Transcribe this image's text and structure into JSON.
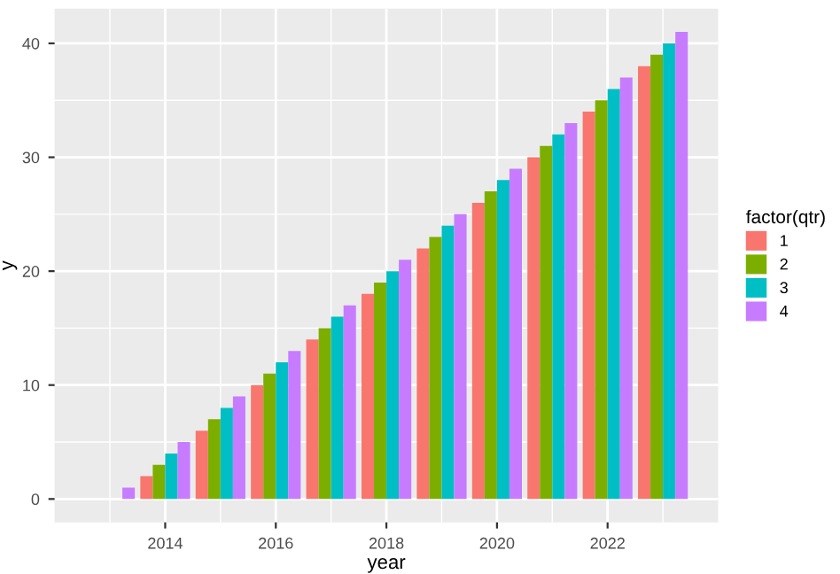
{
  "chart_data": {
    "type": "bar",
    "xlabel": "year",
    "ylabel": "y",
    "legend_title": "factor(qtr)",
    "series": [
      {
        "name": "1",
        "color": "#f8766d",
        "x": [
          2014,
          2015,
          2016,
          2017,
          2018,
          2019,
          2020,
          2021,
          2022,
          2023
        ],
        "values": [
          2,
          6,
          10,
          14,
          18,
          22,
          26,
          30,
          34,
          38
        ]
      },
      {
        "name": "2",
        "color": "#7cae00",
        "x": [
          2014,
          2015,
          2016,
          2017,
          2018,
          2019,
          2020,
          2021,
          2022,
          2023
        ],
        "values": [
          3,
          7,
          11,
          15,
          19,
          23,
          27,
          31,
          35,
          39
        ]
      },
      {
        "name": "3",
        "color": "#00bfc4",
        "x": [
          2014,
          2015,
          2016,
          2017,
          2018,
          2019,
          2020,
          2021,
          2022,
          2023
        ],
        "values": [
          4,
          8,
          12,
          16,
          20,
          24,
          28,
          32,
          36,
          40
        ]
      },
      {
        "name": "4",
        "color": "#c77cff",
        "x": [
          2013,
          2014,
          2015,
          2016,
          2017,
          2018,
          2019,
          2020,
          2021,
          2022,
          2023
        ],
        "values": [
          1,
          5,
          9,
          13,
          17,
          21,
          25,
          29,
          33,
          37,
          41
        ]
      }
    ],
    "xlim": [
      2012.0,
      2024.0
    ],
    "xticks": [
      2014,
      2016,
      2018,
      2020,
      2022
    ],
    "ylim": [
      -2.05,
      43.05
    ],
    "yticks": [
      0,
      10,
      20,
      30,
      40
    ],
    "grid": true,
    "legend": "right"
  }
}
